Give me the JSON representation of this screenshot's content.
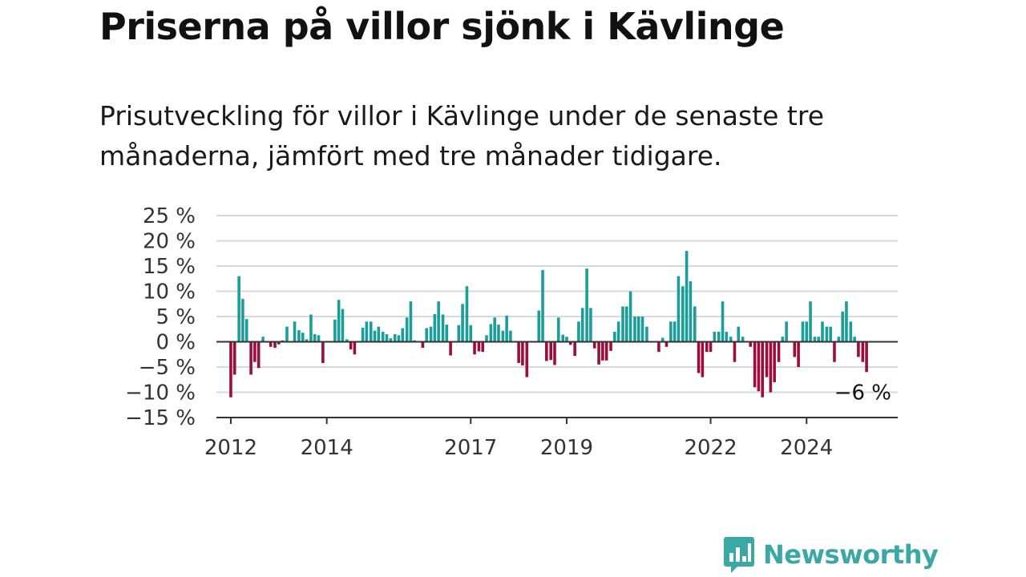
{
  "title": "Priserna på villor sjönk i Kävlinge",
  "subtitle": "Prisutveckling för villor i Kävlinge under de senaste tre månaderna, jämfört med tre månader tidigare.",
  "brand": {
    "name": "Newsworthy",
    "logo_icon": "bar-chart-speech-bubble-icon",
    "color": "#3aa8a4"
  },
  "chart_data": {
    "type": "bar",
    "title": "",
    "xlabel": "",
    "ylabel": "",
    "ylim": [
      -15,
      25
    ],
    "xlim": [
      2011.7,
      2025.9
    ],
    "y_ticks": [
      25,
      20,
      15,
      10,
      5,
      0,
      -5,
      -10,
      -15
    ],
    "y_tick_labels": [
      "25 %",
      "20 %",
      "15 %",
      "10 %",
      "5 %",
      "0 %",
      "−5 %",
      "−10 %",
      "−15 %"
    ],
    "x_ticks": [
      2012,
      2014,
      2017,
      2019,
      2022,
      2024
    ],
    "x_tick_labels": [
      "2012",
      "2014",
      "2017",
      "2019",
      "2022",
      "2024"
    ],
    "grid": true,
    "colors": {
      "positive": "#1a9e99",
      "negative": "#9e0c3b",
      "grid": "#d9d9d9",
      "axis": "#333333"
    },
    "annotation": {
      "text": "−6 %",
      "x": 2025.1,
      "y": -10
    },
    "x": [
      2012.0,
      2012.08,
      2012.17,
      2012.25,
      2012.33,
      2012.42,
      2012.5,
      2012.58,
      2012.67,
      2012.75,
      2012.83,
      2012.92,
      2013.0,
      2013.08,
      2013.17,
      2013.25,
      2013.33,
      2013.42,
      2013.5,
      2013.58,
      2013.67,
      2013.75,
      2013.83,
      2013.92,
      2014.0,
      2014.08,
      2014.17,
      2014.25,
      2014.33,
      2014.42,
      2014.5,
      2014.58,
      2014.67,
      2014.75,
      2014.83,
      2014.92,
      2015.0,
      2015.08,
      2015.17,
      2015.25,
      2015.33,
      2015.42,
      2015.5,
      2015.58,
      2015.67,
      2015.75,
      2015.83,
      2015.92,
      2016.0,
      2016.08,
      2016.17,
      2016.25,
      2016.33,
      2016.42,
      2016.5,
      2016.58,
      2016.67,
      2016.75,
      2016.83,
      2016.92,
      2017.0,
      2017.08,
      2017.17,
      2017.25,
      2017.33,
      2017.42,
      2017.5,
      2017.58,
      2017.67,
      2017.75,
      2017.83,
      2017.92,
      2018.0,
      2018.08,
      2018.17,
      2018.25,
      2018.33,
      2018.42,
      2018.5,
      2018.58,
      2018.67,
      2018.75,
      2018.83,
      2018.92,
      2019.0,
      2019.08,
      2019.17,
      2019.25,
      2019.33,
      2019.42,
      2019.5,
      2019.58,
      2019.67,
      2019.75,
      2019.83,
      2019.92,
      2020.0,
      2020.08,
      2020.17,
      2020.25,
      2020.33,
      2020.42,
      2020.5,
      2020.58,
      2020.67,
      2020.75,
      2020.83,
      2020.92,
      2021.0,
      2021.08,
      2021.17,
      2021.25,
      2021.33,
      2021.42,
      2021.5,
      2021.58,
      2021.67,
      2021.75,
      2021.83,
      2021.92,
      2022.0,
      2022.08,
      2022.17,
      2022.25,
      2022.33,
      2022.42,
      2022.5,
      2022.58,
      2022.67,
      2022.75,
      2022.83,
      2022.92,
      2023.0,
      2023.08,
      2023.17,
      2023.25,
      2023.33,
      2023.42,
      2023.5,
      2023.58,
      2023.67,
      2023.75,
      2023.83,
      2023.92,
      2024.0,
      2024.08,
      2024.17,
      2024.25,
      2024.33,
      2024.42,
      2024.5,
      2024.58,
      2024.67,
      2024.75,
      2024.83,
      2024.92,
      2025.0,
      2025.08,
      2025.17,
      2025.25
    ],
    "values": [
      -11,
      -6.5,
      13,
      8.5,
      4.5,
      -6.5,
      -4,
      -5.2,
      1,
      0,
      -1,
      -1.2,
      -0.5,
      0.3,
      3,
      0,
      4,
      2.3,
      1.8,
      0.5,
      5.4,
      1.5,
      1.3,
      -4.2,
      0,
      0,
      4.4,
      8.3,
      6.5,
      0.5,
      -1.5,
      -2.5,
      0,
      2.8,
      4,
      4,
      2.2,
      3,
      2,
      1.5,
      0.7,
      1.5,
      1.3,
      2.7,
      4.8,
      8,
      0.3,
      0,
      -1.2,
      2.7,
      3,
      5.5,
      8,
      5.4,
      3.4,
      -2.7,
      0,
      3.3,
      7.5,
      11,
      3.3,
      -2.5,
      -1.9,
      -2,
      1.3,
      3.5,
      4.8,
      3.4,
      2.2,
      5.2,
      2.2,
      0,
      -4.2,
      -4.7,
      -7,
      0,
      0,
      6.2,
      14.2,
      -3.8,
      -3.6,
      -4.6,
      4.8,
      1.4,
      1,
      -0.6,
      -2.8,
      4,
      6.7,
      14.5,
      6.7,
      -1.3,
      -4.5,
      -3.7,
      -3.7,
      -1.8,
      2,
      4,
      7,
      7,
      10,
      5,
      5,
      5,
      3,
      0,
      0,
      -2,
      0.8,
      -1,
      4,
      4,
      13,
      11,
      18,
      12,
      7,
      -6.2,
      -7,
      -2,
      -2,
      2,
      2,
      8,
      2,
      1,
      -4,
      3,
      1,
      0,
      -1,
      -9,
      -9.8,
      -11,
      -7,
      -10,
      -8,
      -4,
      1,
      4,
      0,
      -3,
      -5,
      4,
      4,
      8,
      1,
      1,
      4,
      3,
      3,
      -4,
      1,
      6,
      8,
      4,
      1,
      -3,
      -4,
      -6
    ]
  }
}
